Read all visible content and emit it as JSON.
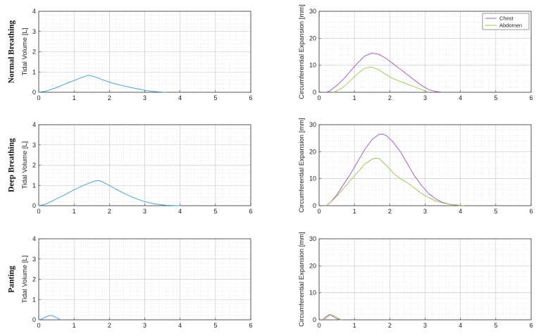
{
  "rows": [
    "Normal Breathing",
    "Deep Breathing",
    "Panting"
  ],
  "colors": {
    "tidal": "#4aa3d9",
    "chest": "#a25ec9",
    "abdomen": "#9cc956"
  },
  "chart_data": [
    {
      "type": "line",
      "row": "Normal Breathing",
      "ylabel": "Tidal Volume [L]",
      "xlim": [
        0,
        6
      ],
      "ylim": [
        0,
        4
      ],
      "xticks": [
        0,
        1,
        2,
        3,
        4,
        5,
        6
      ],
      "yticks": [
        0,
        1,
        2,
        3,
        4
      ],
      "grid": true,
      "series": [
        {
          "color": "#4aa3d9",
          "x": [
            0,
            0.2,
            0.4,
            0.6,
            0.8,
            1.0,
            1.2,
            1.4,
            1.6,
            1.8,
            2.0,
            2.2,
            2.4,
            2.6,
            2.8,
            3.0,
            3.2,
            3.4,
            3.6
          ],
          "y": [
            0,
            0.06,
            0.17,
            0.3,
            0.45,
            0.58,
            0.72,
            0.84,
            0.76,
            0.62,
            0.5,
            0.4,
            0.32,
            0.24,
            0.17,
            0.1,
            0.05,
            0.02,
            0
          ]
        }
      ]
    },
    {
      "type": "line",
      "row": "Normal Breathing",
      "ylabel": "Circumferential Expansion [mm]",
      "xlim": [
        0,
        6
      ],
      "ylim": [
        0,
        30
      ],
      "xticks": [
        0,
        1,
        2,
        3,
        4,
        5,
        6
      ],
      "yticks": [
        0,
        10,
        20,
        30
      ],
      "grid": true,
      "legend": "top-right",
      "series": [
        {
          "name": "Chest",
          "color": "#a25ec9",
          "x": [
            0.2,
            0.3,
            0.5,
            0.7,
            0.9,
            1.1,
            1.3,
            1.5,
            1.7,
            1.9,
            2.1,
            2.3,
            2.5,
            2.7,
            2.9,
            3.1,
            3.3,
            3.5
          ],
          "y": [
            0,
            0.5,
            2.5,
            5,
            8,
            11,
            13.5,
            14.5,
            14,
            12.5,
            10.5,
            8.5,
            6.5,
            4.5,
            2.5,
            1,
            0.3,
            0
          ]
        },
        {
          "name": "Abdomen",
          "color": "#9cc956",
          "x": [
            0.4,
            0.5,
            0.7,
            0.9,
            1.1,
            1.3,
            1.5,
            1.7,
            1.9,
            2.1,
            2.3,
            2.5,
            2.7,
            2.9,
            3.1
          ],
          "y": [
            0,
            0.5,
            2,
            4.5,
            7,
            9,
            9.3,
            8.3,
            6.5,
            5,
            4,
            3,
            2,
            1,
            0
          ]
        }
      ]
    },
    {
      "type": "line",
      "row": "Deep Breathing",
      "ylabel": "Tidal Volume [L]",
      "xlim": [
        0,
        6
      ],
      "ylim": [
        0,
        4
      ],
      "xticks": [
        0,
        1,
        2,
        3,
        4,
        5,
        6
      ],
      "yticks": [
        0,
        1,
        2,
        3,
        4
      ],
      "grid": true,
      "series": [
        {
          "color": "#4aa3d9",
          "x": [
            0,
            0.2,
            0.4,
            0.6,
            0.8,
            1.0,
            1.2,
            1.4,
            1.6,
            1.7,
            1.8,
            2.0,
            2.2,
            2.4,
            2.6,
            2.8,
            3.0,
            3.2,
            3.4,
            3.6,
            3.8,
            4.0
          ],
          "y": [
            0,
            0.08,
            0.25,
            0.42,
            0.6,
            0.78,
            0.95,
            1.1,
            1.22,
            1.24,
            1.18,
            1.0,
            0.8,
            0.62,
            0.46,
            0.32,
            0.2,
            0.12,
            0.06,
            0.02,
            0.01,
            0
          ]
        }
      ]
    },
    {
      "type": "line",
      "row": "Deep Breathing",
      "ylabel": "Circumferential Expansion [mm]",
      "xlim": [
        0,
        6
      ],
      "ylim": [
        0,
        30
      ],
      "xticks": [
        0,
        1,
        2,
        3,
        4,
        5,
        6
      ],
      "yticks": [
        0,
        10,
        20,
        30
      ],
      "grid": true,
      "series": [
        {
          "name": "Chest",
          "color": "#a25ec9",
          "x": [
            0.2,
            0.3,
            0.5,
            0.7,
            0.9,
            1.1,
            1.3,
            1.5,
            1.7,
            1.8,
            1.9,
            2.1,
            2.3,
            2.5,
            2.7,
            2.9,
            3.1,
            3.3,
            3.5,
            3.7,
            3.9,
            4.0
          ],
          "y": [
            0,
            1,
            4,
            8,
            12,
            16.5,
            21,
            24.5,
            26.5,
            26.5,
            26,
            23.5,
            20,
            15.5,
            11,
            7.5,
            4.5,
            2.5,
            1.2,
            0.5,
            0.2,
            0
          ]
        },
        {
          "name": "Abdomen",
          "color": "#9cc956",
          "x": [
            0.2,
            0.3,
            0.5,
            0.7,
            0.9,
            1.1,
            1.3,
            1.5,
            1.6,
            1.7,
            1.9,
            2.1,
            2.3,
            2.5,
            2.7,
            2.9,
            3.1,
            3.3,
            3.5,
            3.7,
            3.9,
            4.1
          ],
          "y": [
            0,
            1,
            3.5,
            6.5,
            9.5,
            12.5,
            15.5,
            17.2,
            17.6,
            17.4,
            15,
            12,
            10,
            8.5,
            6.5,
            4.5,
            3,
            1.8,
            1,
            0.5,
            0.3,
            0
          ]
        }
      ]
    },
    {
      "type": "line",
      "row": "Panting",
      "ylabel": "Tidal Volume [L]",
      "xlim": [
        0,
        6
      ],
      "ylim": [
        0,
        4
      ],
      "xticks": [
        0,
        1,
        2,
        3,
        4,
        5,
        6
      ],
      "yticks": [
        0,
        1,
        2,
        3,
        4
      ],
      "grid": true,
      "series": [
        {
          "color": "#4aa3d9",
          "x": [
            0,
            0.1,
            0.2,
            0.3,
            0.35,
            0.4,
            0.5,
            0.6,
            0.65
          ],
          "y": [
            0,
            0.05,
            0.14,
            0.21,
            0.22,
            0.2,
            0.1,
            0.02,
            0
          ]
        }
      ]
    },
    {
      "type": "line",
      "row": "Panting",
      "ylabel": "Circumferential Expansion [mm]",
      "xlim": [
        0,
        6
      ],
      "ylim": [
        0,
        30
      ],
      "xticks": [
        0,
        1,
        2,
        3,
        4,
        5,
        6
      ],
      "yticks": [
        0,
        10,
        20,
        30
      ],
      "grid": true,
      "series": [
        {
          "name": "Chest",
          "color": "#a25ec9",
          "x": [
            0.1,
            0.2,
            0.3,
            0.4,
            0.5,
            0.6
          ],
          "y": [
            0,
            1.2,
            2,
            1.2,
            0.4,
            0
          ]
        },
        {
          "name": "Abdomen",
          "color": "#9cc956",
          "x": [
            0.15,
            0.25,
            0.35,
            0.45,
            0.55,
            0.65
          ],
          "y": [
            0,
            1.2,
            1.8,
            1.3,
            0.5,
            0
          ]
        }
      ]
    }
  ]
}
